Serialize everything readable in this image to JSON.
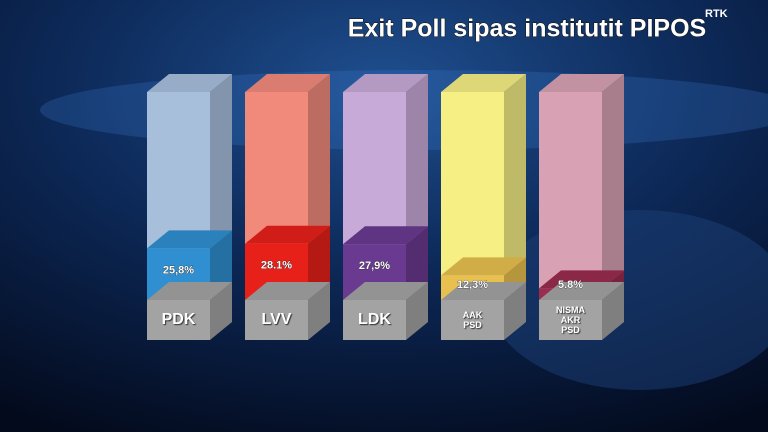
{
  "chart_data": {
    "type": "bar3d",
    "title": "Exit Poll sipas institutit PIPOS",
    "channel_logo": "RTK",
    "categories": [
      "PDK",
      "LVV",
      "LDK",
      "AAK\nPSD",
      "NISMA\nAKR\nPSD"
    ],
    "values": [
      25.8,
      28.1,
      27.9,
      12.3,
      5.8
    ],
    "value_labels": [
      "25,8%",
      "28.1%",
      "27,9%",
      "12,3%",
      "5.8%"
    ],
    "colors": [
      "#2f8fd0",
      "#e8201a",
      "#6a3a90",
      "#e8c050",
      "#9a2c50"
    ],
    "track_colors": [
      "#a8bfdc",
      "#f28a7c",
      "#c8aad8",
      "#f5ef84",
      "#d9a2b4"
    ]
  }
}
